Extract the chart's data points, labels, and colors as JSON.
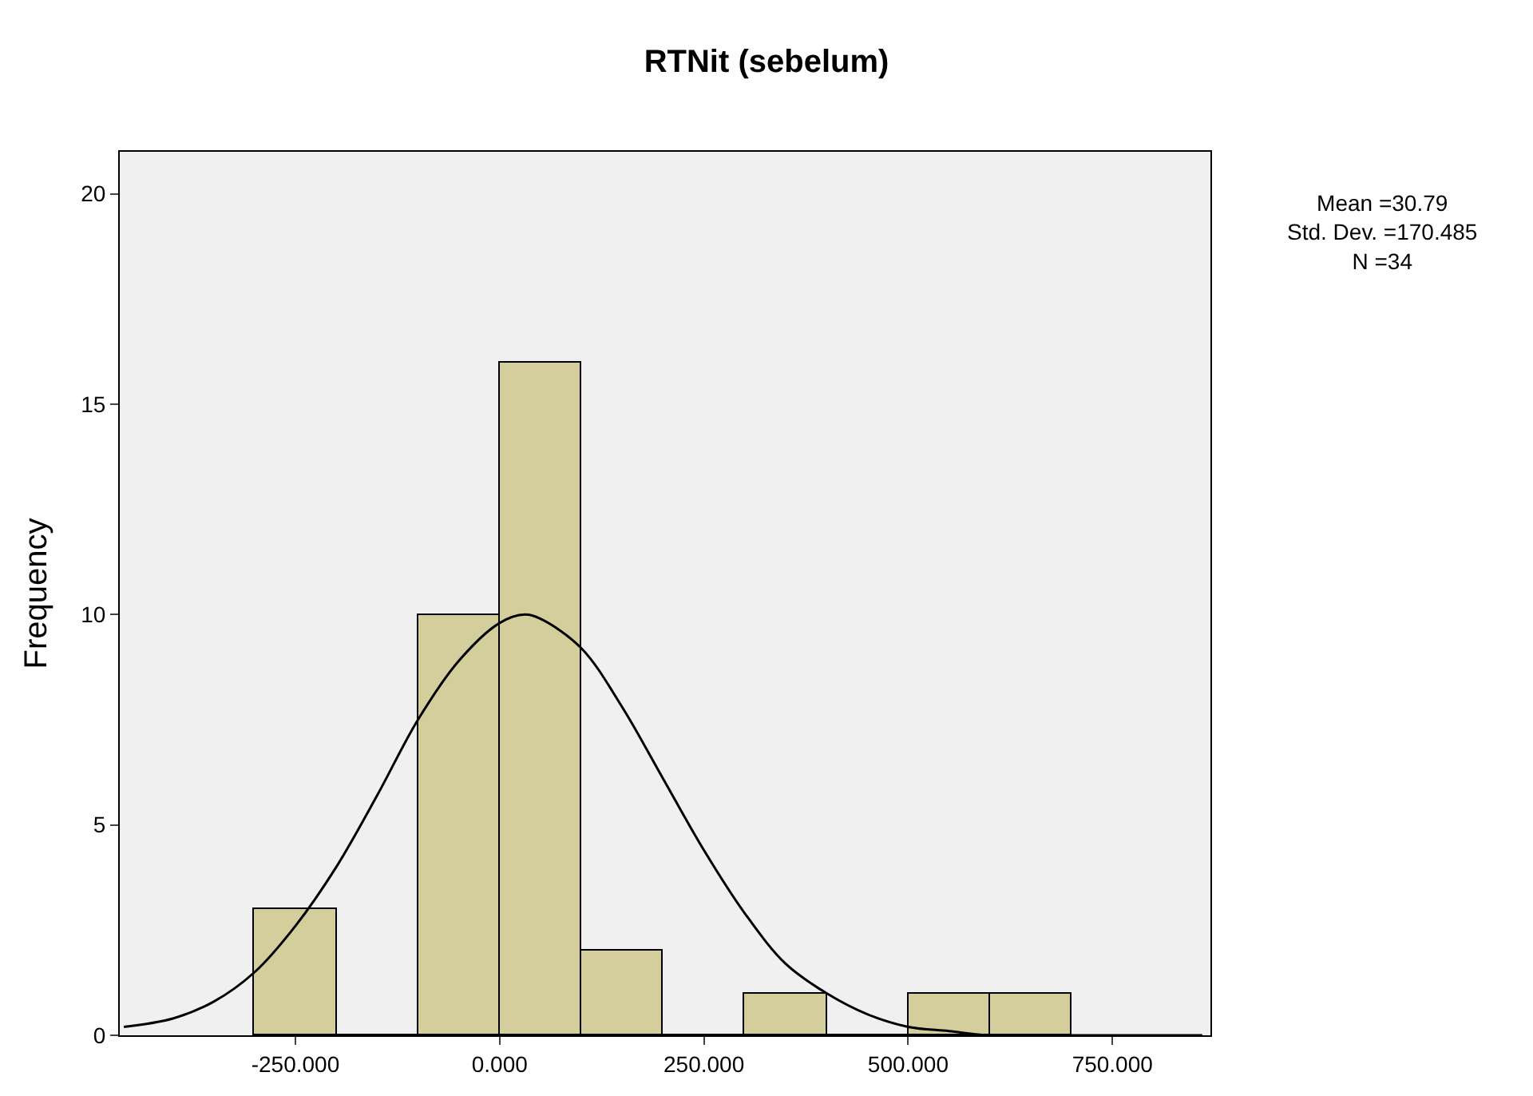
{
  "chart_data": {
    "type": "histogram",
    "title": "RTNit (sebelum)",
    "ylabel": "Frequency",
    "bins": [
      -300,
      -200,
      -100,
      0,
      100,
      200,
      300,
      400,
      500,
      600,
      700
    ],
    "values": [
      3,
      0,
      10,
      16,
      2,
      0,
      1,
      0,
      1,
      1
    ],
    "color": "#d3ce9b",
    "series": [
      {
        "type": "line",
        "color": "#000000",
        "x": [
          -460,
          -400,
          -350,
          -300,
          -250,
          -200,
          -150,
          -100,
          -50,
          0,
          30.79,
          50,
          100,
          150,
          200,
          250,
          300,
          350,
          400,
          450,
          500,
          550,
          600,
          700,
          860
        ],
        "values": [
          0.2,
          0.4,
          0.8,
          1.5,
          2.6,
          4.0,
          5.7,
          7.5,
          8.9,
          9.8,
          10,
          9.9,
          9.2,
          7.8,
          6.1,
          4.4,
          2.9,
          1.7,
          1.0,
          0.5,
          0.2,
          0.1,
          0.0,
          0.0,
          0.0
        ]
      }
    ],
    "xlim": [
      -465,
      870
    ],
    "ylim": [
      0,
      21
    ],
    "xticks": [
      {
        "value": -250,
        "label": "-250.000"
      },
      {
        "value": 0,
        "label": "0.000"
      },
      {
        "value": 250,
        "label": "250.000"
      },
      {
        "value": 500,
        "label": "500.000"
      },
      {
        "value": 750,
        "label": "750.000"
      }
    ],
    "yticks": [
      0,
      5,
      10,
      15,
      20
    ],
    "grid": false,
    "annotations": [
      "Mean =30.79",
      "Std. Dev. =170.485",
      "N =34"
    ]
  }
}
